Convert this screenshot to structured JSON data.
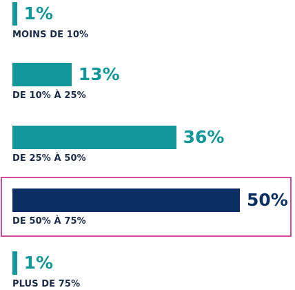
{
  "chart_data": {
    "type": "bar",
    "orientation": "horizontal",
    "categories": [
      "MOINS DE 10%",
      "DE 10% À 25%",
      "DE 25% À 50%",
      "DE 50% À 75%",
      "PLUS DE 75%"
    ],
    "values": [
      1,
      13,
      36,
      50,
      1
    ],
    "value_labels": [
      "1%",
      "13%",
      "36%",
      "50%",
      "1%"
    ],
    "xlim": [
      0,
      50
    ],
    "highlighted_category": "DE 50% À 75%",
    "grid": false,
    "legend": "none"
  },
  "colors": {
    "default_bar": "#12979a",
    "highlight_bar": "#0b2f63",
    "highlight_border": "#d14b9a",
    "category_text": "#1a2a4a"
  }
}
